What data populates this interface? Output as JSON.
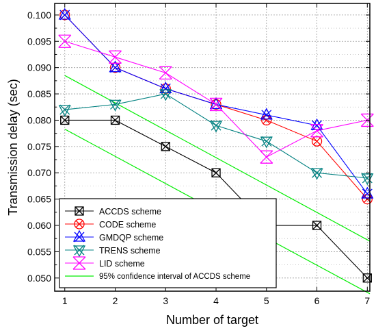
{
  "chart_data": {
    "type": "line",
    "xlabel": "Number of target",
    "ylabel": "Transmission delay (sec)",
    "xlim": [
      0.8,
      7.05
    ],
    "ylim": [
      0.0475,
      0.1022
    ],
    "x_ticks": [
      1,
      2,
      3,
      4,
      5,
      6,
      7
    ],
    "x_tick_labels": [
      "1",
      "2",
      "3",
      "4",
      "5",
      "6",
      "7"
    ],
    "y_ticks": [
      0.05,
      0.055,
      0.06,
      0.065,
      0.07,
      0.075,
      0.08,
      0.085,
      0.09,
      0.095,
      0.1
    ],
    "y_tick_labels": [
      "0.050",
      "0.055",
      "0.060",
      "0.065",
      "0.070",
      "0.075",
      "0.080",
      "0.085",
      "0.090",
      "0.095",
      "0.100"
    ],
    "grid": true,
    "legend_position": "bottom-left",
    "x": [
      1,
      2,
      3,
      4,
      5,
      6,
      7
    ],
    "series": [
      {
        "name": "ACCDS scheme",
        "color": "#000000",
        "marker": "box-x",
        "values": [
          0.08,
          0.08,
          0.075,
          0.07,
          0.06,
          0.06,
          0.05
        ]
      },
      {
        "name": "CODE scheme",
        "color": "#ff0000",
        "marker": "circle-x",
        "values": [
          0.1,
          0.09,
          0.086,
          0.083,
          0.08,
          0.076,
          0.065
        ]
      },
      {
        "name": "GMDQP scheme",
        "color": "#0000ff",
        "marker": "up-triangle-x",
        "values": [
          0.1,
          0.09,
          0.086,
          0.083,
          0.081,
          0.079,
          0.066
        ]
      },
      {
        "name": "TRENS scheme",
        "color": "#008080",
        "marker": "down-triangle-x",
        "values": [
          0.082,
          0.083,
          0.085,
          0.079,
          0.076,
          0.07,
          0.069
        ]
      },
      {
        "name": "LID scheme",
        "color": "#ff00ff",
        "marker": "star-x",
        "values": [
          0.095,
          0.092,
          0.089,
          0.083,
          0.073,
          0.078,
          0.08
        ]
      }
    ],
    "confidence_interval": {
      "name": "95% confidence interval of ACCDS scheme",
      "color": "#00ee00",
      "x": [
        1,
        7.05
      ],
      "upper": [
        0.0885,
        0.057
      ],
      "lower": [
        0.0783,
        0.047
      ]
    }
  }
}
